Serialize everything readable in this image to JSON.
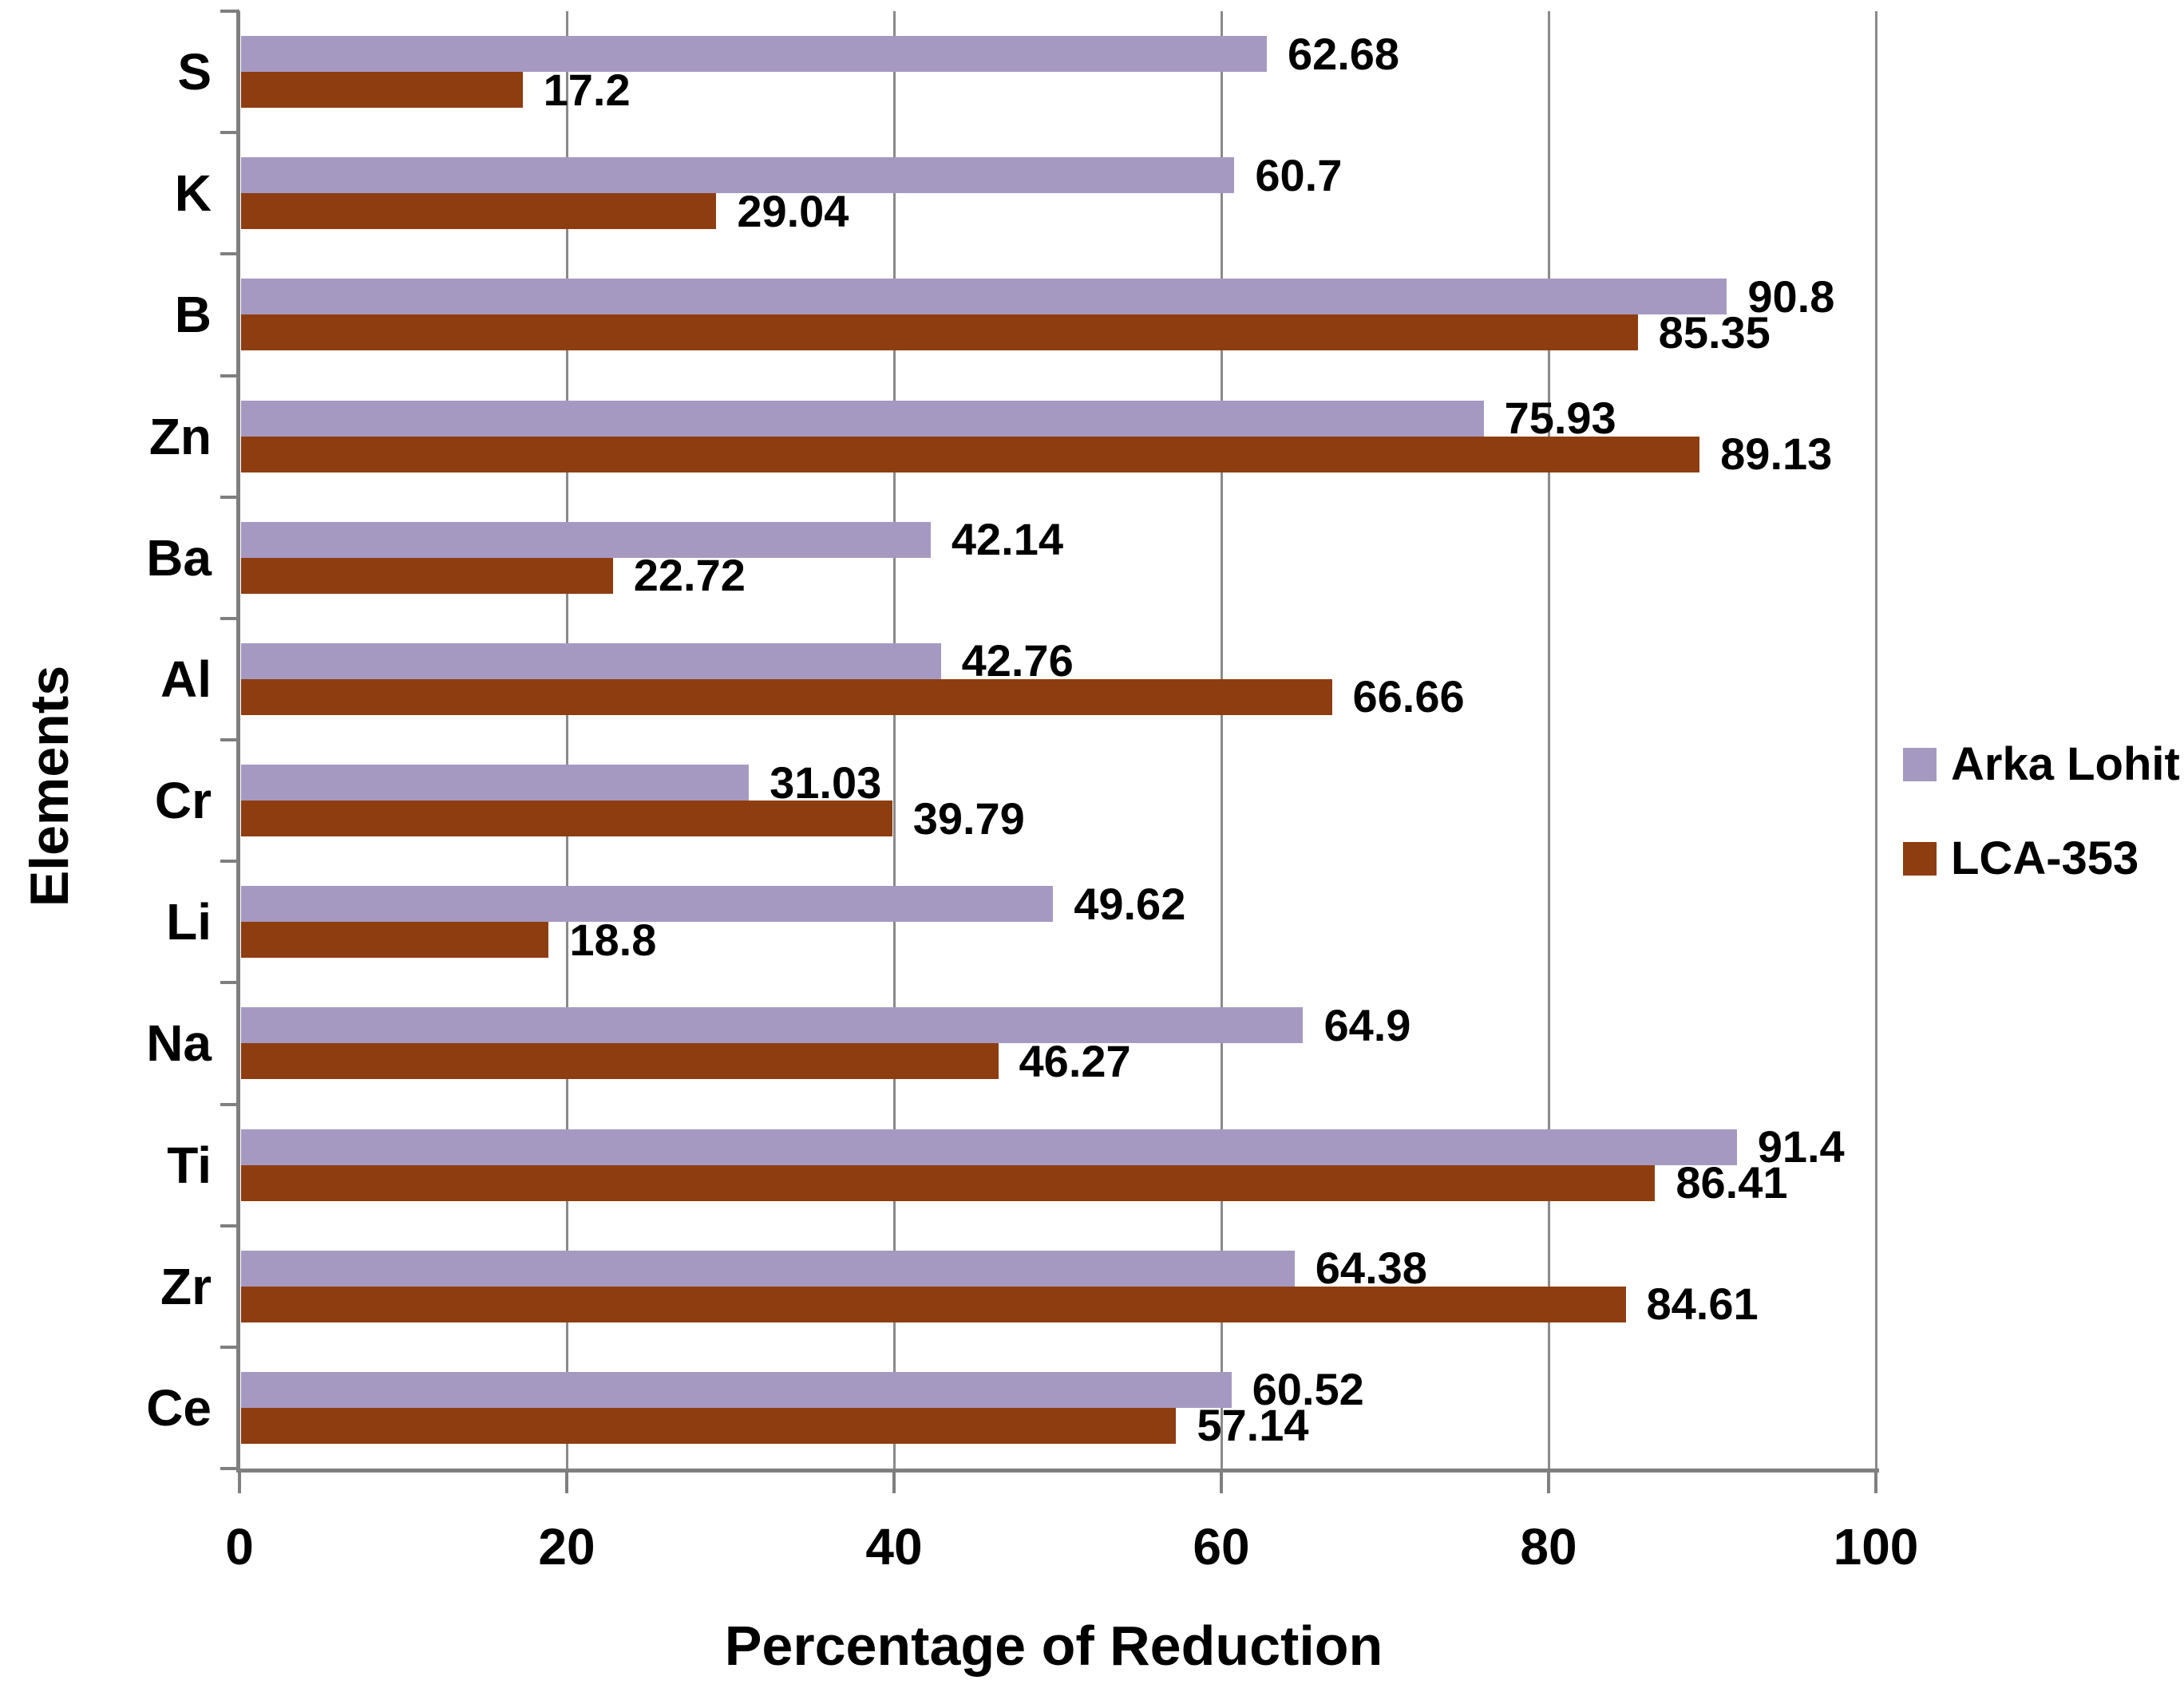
{
  "chart_data": {
    "type": "bar",
    "orientation": "horizontal",
    "title": "",
    "xlabel": "Percentage of Reduction",
    "ylabel": "Elements",
    "xlim": [
      0,
      100
    ],
    "x_ticks": [
      0,
      20,
      40,
      60,
      80,
      100
    ],
    "x_tick_labels": [
      "0",
      "20",
      "40",
      "60",
      "80",
      "100"
    ],
    "grid": "vertical-gridlines-on",
    "legend_position": "right",
    "categories": [
      "S",
      "K",
      "B",
      "Zn",
      "Ba",
      "Al",
      "Cr",
      "Li",
      "Na",
      "Ti",
      "Zr",
      "Ce"
    ],
    "series": [
      {
        "name": "Arka Lohit",
        "color": "#A699C1",
        "values": [
          62.68,
          60.7,
          90.8,
          75.93,
          42.14,
          42.76,
          31.03,
          49.62,
          64.9,
          91.4,
          64.38,
          60.52
        ],
        "labels": [
          "62.68",
          "60.7",
          "90.8",
          "75.93",
          "42.14",
          "42.76",
          "31.03",
          "49.62",
          "64.9",
          "91.4",
          "64.38",
          "60.52"
        ]
      },
      {
        "name": "LCA-353",
        "color": "#8E3D10",
        "values": [
          17.2,
          29.04,
          85.35,
          89.13,
          22.72,
          66.66,
          39.79,
          18.8,
          46.27,
          86.41,
          84.61,
          57.14
        ],
        "labels": [
          "17.2",
          "29.04",
          "85.35",
          "89.13",
          "22.72",
          "66.66",
          "39.79",
          "18.8",
          "46.27",
          "86.41",
          "84.61",
          "57.14"
        ]
      }
    ],
    "colors": {
      "axis": "#7F7F7F",
      "gridline": "#8A8A8A",
      "background": "#FFFFFF",
      "text": "#000000"
    }
  }
}
